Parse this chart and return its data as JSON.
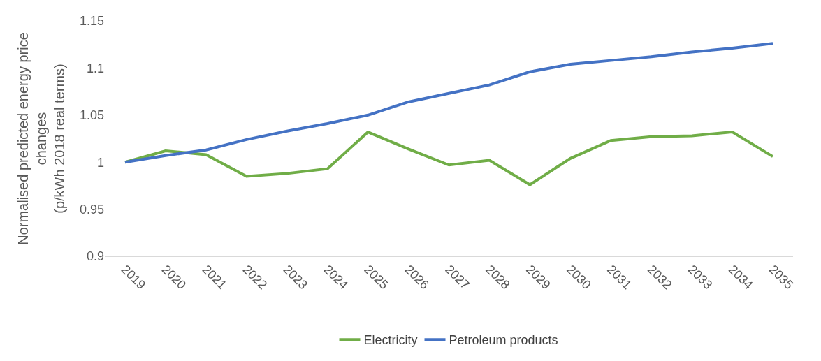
{
  "chart_data": {
    "type": "line",
    "ylabel": "Normalised predicted energy price\nchanges\n(p/kWh 2018 real terms)",
    "categories": [
      "2019",
      "2020",
      "2021",
      "2022",
      "2023",
      "2024",
      "2025",
      "2026",
      "2027",
      "2028",
      "2029",
      "2030",
      "2031",
      "2032",
      "2033",
      "2034",
      "2035"
    ],
    "series": [
      {
        "name": "Electricity",
        "color": "#70ad47",
        "values": [
          1.0,
          1.012,
          1.008,
          0.985,
          0.988,
          0.993,
          1.032,
          1.014,
          0.997,
          1.002,
          0.976,
          1.004,
          1.023,
          1.027,
          1.028,
          1.032,
          1.006
        ]
      },
      {
        "name": "Petroleum products",
        "color": "#4472c4",
        "values": [
          1.0,
          1.007,
          1.013,
          1.024,
          1.033,
          1.041,
          1.05,
          1.064,
          1.073,
          1.082,
          1.096,
          1.104,
          1.108,
          1.112,
          1.117,
          1.121,
          1.126
        ]
      }
    ],
    "ylim": [
      0.9,
      1.15
    ],
    "yticks": [
      0.9,
      0.95,
      1,
      1.05,
      1.1,
      1.15
    ],
    "grid": false,
    "legend": "bottom",
    "marker": "none",
    "line_style": "solid"
  }
}
